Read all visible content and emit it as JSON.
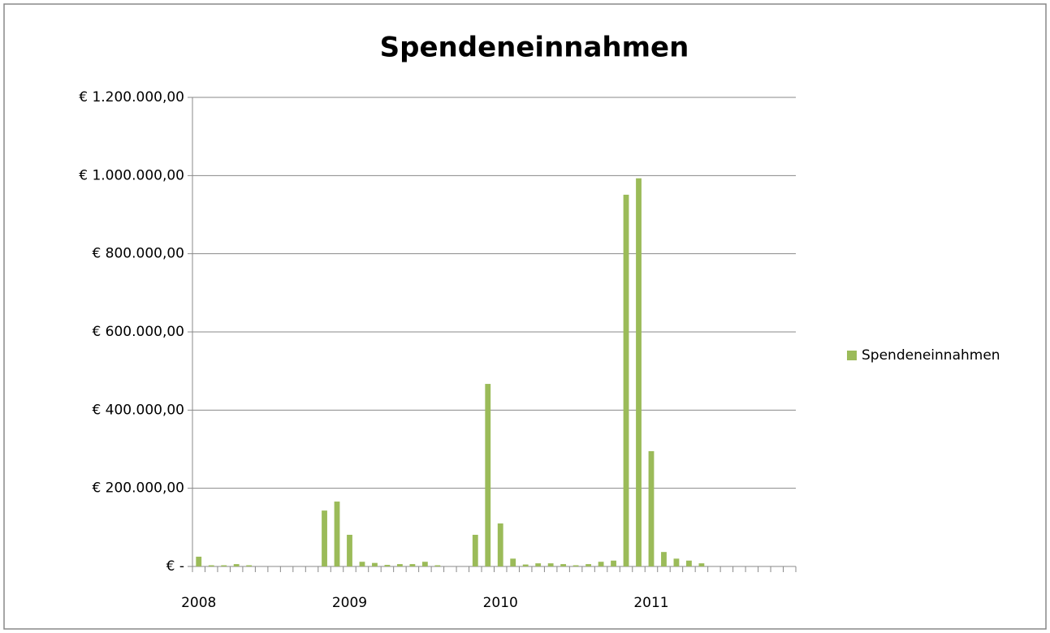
{
  "chart_data": {
    "type": "bar",
    "title": "Spendeneinnahmen",
    "categories": [
      "2008",
      null,
      null,
      null,
      null,
      null,
      null,
      null,
      null,
      null,
      null,
      null,
      "2009",
      null,
      null,
      null,
      null,
      null,
      null,
      null,
      null,
      null,
      null,
      null,
      "2010",
      null,
      null,
      null,
      null,
      null,
      null,
      null,
      null,
      null,
      null,
      null,
      "2011",
      null,
      null,
      null,
      null,
      null,
      null,
      null,
      null,
      null,
      null,
      null
    ],
    "series": [
      {
        "name": "Spendeneinnahmen",
        "color": "#9bbb59",
        "values": [
          25000,
          3000,
          3000,
          6000,
          3000,
          0,
          0,
          0,
          0,
          0,
          143000,
          166000,
          81000,
          12000,
          9000,
          4000,
          6000,
          6000,
          12000,
          3000,
          0,
          0,
          81000,
          467000,
          110000,
          20000,
          5000,
          8000,
          8000,
          6000,
          3000,
          6000,
          12000,
          15000,
          951000,
          993000,
          295000,
          37000,
          20000,
          15000,
          8000,
          0,
          0,
          0,
          0,
          0,
          0,
          0
        ]
      }
    ],
    "ylim": [
      0,
      1200000
    ],
    "yticks": [
      {
        "value": 0,
        "label": "€ -"
      },
      {
        "value": 200000,
        "label": "€ 200.000,00"
      },
      {
        "value": 400000,
        "label": "€ 400.000,00"
      },
      {
        "value": 600000,
        "label": "€ 600.000,00"
      },
      {
        "value": 800000,
        "label": "€ 800.000,00"
      },
      {
        "value": 1000000,
        "label": "€ 1.000.000,00"
      },
      {
        "value": 1200000,
        "label": "€ 1.200.000,00"
      }
    ],
    "grid": true,
    "legend": "right"
  }
}
